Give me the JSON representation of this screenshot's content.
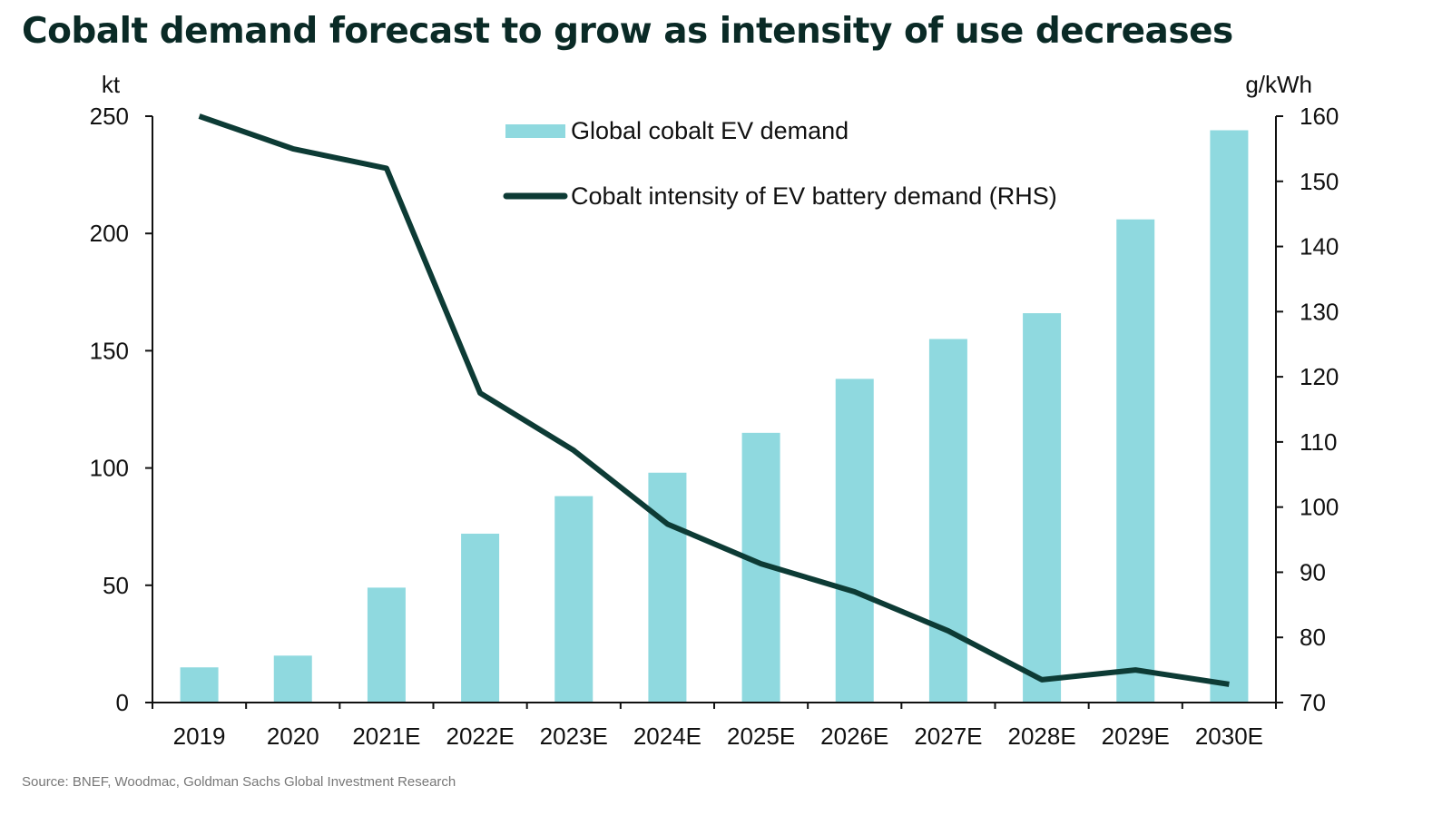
{
  "title": "Cobalt demand forecast to grow as intensity of use decreases",
  "source": "Source: BNEF, Woodmac, Goldman Sachs Global Investment Research",
  "chart_data": {
    "type": "bar",
    "title": "Cobalt demand forecast to grow as intensity of use decreases",
    "categories": [
      "2019",
      "2020",
      "2021E",
      "2022E",
      "2023E",
      "2024E",
      "2025E",
      "2026E",
      "2027E",
      "2028E",
      "2029E",
      "2030E"
    ],
    "y_left": {
      "unit": "kt",
      "range": [
        0,
        250
      ],
      "ticks": [
        0,
        50,
        100,
        150,
        200,
        250
      ]
    },
    "y_right": {
      "unit": "g/kWh",
      "range": [
        70,
        160
      ],
      "ticks": [
        70,
        80,
        90,
        100,
        110,
        120,
        130,
        140,
        150,
        160
      ]
    },
    "series": [
      {
        "name": "Global cobalt EV demand",
        "type": "bar",
        "axis": "left",
        "color": "#8fd9df",
        "values": [
          15,
          20,
          49,
          72,
          88,
          98,
          115,
          138,
          155,
          166,
          206,
          244
        ]
      },
      {
        "name": "Cobalt intensity of EV battery demand (RHS)",
        "type": "line",
        "axis": "right",
        "color": "#0d3b35",
        "values": [
          160,
          155,
          152,
          117.5,
          108.7,
          97.4,
          91.3,
          87,
          81,
          73.5,
          75,
          72.8
        ]
      }
    ],
    "grid": false,
    "legend": "top-center"
  }
}
